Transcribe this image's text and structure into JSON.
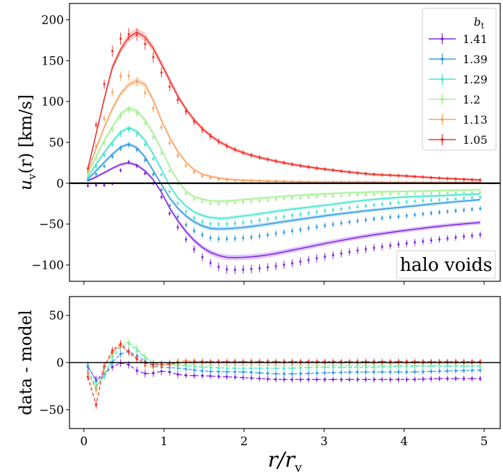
{
  "chart_data": [
    {
      "type": "line",
      "panel": "top",
      "ylabel_main": "u",
      "ylabel_sub": "v",
      "ylabel_rest": "(r) [km/s]",
      "xlim": [
        -0.18,
        5.2
      ],
      "ylim": [
        -120,
        220
      ],
      "yticks": [
        -100,
        -50,
        0,
        50,
        100,
        150,
        200
      ],
      "yticklabels": [
        "−100",
        "−50",
        "0",
        "50",
        "100",
        "150",
        "200"
      ],
      "xticks": [
        0,
        1,
        2,
        3,
        4,
        5
      ],
      "annotation": "halo voids",
      "legend": {
        "title_main": "b",
        "title_sub": "t",
        "placement": "top-right",
        "entries": [
          "1.41",
          "1.39",
          "1.29",
          "1.2",
          "1.13",
          "1.05"
        ]
      },
      "series": [
        {
          "name": "1.41",
          "color": "#8022e8",
          "anchors_x": [
            0.05,
            0.2,
            0.35,
            0.55,
            0.7,
            0.9,
            1.1,
            1.3,
            1.5,
            1.7,
            1.85,
            2.2,
            2.6,
            3.0,
            3.5,
            4.0,
            4.5,
            4.95
          ],
          "anchors_y": [
            3,
            10,
            18,
            25,
            20,
            0,
            -35,
            -62,
            -80,
            -89,
            -91,
            -89,
            -82,
            -74,
            -65,
            -58,
            -52,
            -48
          ],
          "data_y": [
            -3,
            -2,
            -1,
            26,
            18,
            -5,
            -42,
            -72,
            -92,
            -103,
            -106,
            -104,
            -98,
            -90,
            -81,
            -74,
            -68,
            -63
          ]
        },
        {
          "name": "1.39",
          "color": "#2f9ae6",
          "anchors_x": [
            0.05,
            0.2,
            0.35,
            0.55,
            0.7,
            0.9,
            1.1,
            1.3,
            1.5,
            1.65,
            2.0,
            2.5,
            3.0,
            3.5,
            4.0,
            4.5,
            4.95
          ],
          "anchors_y": [
            5,
            20,
            35,
            48,
            40,
            10,
            -22,
            -42,
            -53,
            -56,
            -54,
            -47,
            -40,
            -34,
            -29,
            -24,
            -20
          ],
          "data_y": [
            4,
            15,
            32,
            47,
            37,
            5,
            -32,
            -53,
            -64,
            -68,
            -67,
            -60,
            -52,
            -45,
            -40,
            -35,
            -31
          ]
        },
        {
          "name": "1.29",
          "color": "#3ee7cb",
          "anchors_x": [
            0.05,
            0.2,
            0.35,
            0.55,
            0.7,
            0.9,
            1.1,
            1.3,
            1.5,
            1.7,
            2.0,
            2.5,
            3.0,
            3.5,
            4.0,
            4.5,
            4.95
          ],
          "anchors_y": [
            8,
            30,
            50,
            68,
            60,
            30,
            -8,
            -30,
            -40,
            -43,
            -40,
            -33,
            -27,
            -21,
            -17,
            -15,
            -13
          ],
          "data_y": [
            7,
            27,
            47,
            66,
            56,
            24,
            -15,
            -37,
            -48,
            -50,
            -48,
            -41,
            -34,
            -28,
            -23,
            -20,
            -17
          ]
        },
        {
          "name": "1.2",
          "color": "#a4f08e",
          "anchors_x": [
            0.05,
            0.2,
            0.35,
            0.55,
            0.7,
            0.9,
            1.1,
            1.3,
            1.5,
            1.7,
            2.0,
            2.5,
            3.0,
            3.5,
            4.0,
            4.5,
            4.95
          ],
          "anchors_y": [
            12,
            42,
            68,
            92,
            85,
            55,
            15,
            -12,
            -20,
            -22,
            -20,
            -16,
            -13,
            -11,
            -10,
            -9,
            -8
          ],
          "data_y": [
            11,
            40,
            65,
            90,
            82,
            50,
            10,
            -15,
            -23,
            -25,
            -23,
            -19,
            -16,
            -14,
            -13,
            -12,
            -11
          ]
        },
        {
          "name": "1.13",
          "color": "#fca05c",
          "anchors_x": [
            0.05,
            0.2,
            0.35,
            0.5,
            0.7,
            0.85,
            1.0,
            1.2,
            1.4,
            1.6,
            1.8,
            2.2,
            2.6,
            3.0,
            3.5,
            4.0,
            4.5,
            4.95
          ],
          "anchors_y": [
            15,
            55,
            90,
            115,
            126,
            105,
            70,
            35,
            15,
            8,
            5,
            3,
            2,
            1.5,
            1.5,
            1,
            1,
            1
          ],
          "data_y": [
            14,
            60,
            110,
            133,
            120,
            95,
            62,
            30,
            12,
            6,
            4,
            3,
            2,
            1.5,
            1.5,
            1,
            1,
            1
          ]
        },
        {
          "name": "1.05",
          "color": "#f22f2a",
          "anchors_x": [
            0.05,
            0.2,
            0.35,
            0.5,
            0.65,
            0.8,
            1.0,
            1.2,
            1.4,
            1.6,
            1.8,
            2.0,
            2.4,
            2.8,
            3.2,
            3.6,
            4.0,
            4.5,
            4.95
          ],
          "anchors_y": [
            18,
            80,
            140,
            170,
            185,
            175,
            140,
            102,
            75,
            57,
            45,
            37,
            27,
            20,
            15,
            11,
            9,
            6,
            4
          ],
          "data_y": [
            18,
            95,
            160,
            180,
            182,
            165,
            130,
            98,
            73,
            56,
            45,
            37,
            27,
            20,
            15,
            11,
            9,
            6,
            4
          ]
        }
      ]
    },
    {
      "type": "line",
      "panel": "bottom",
      "ylabel": "data - model",
      "xlabel_main": "r/r",
      "xlabel_sub": "v",
      "xlim": [
        -0.18,
        5.2
      ],
      "ylim": [
        -70,
        70
      ],
      "yticks": [
        -50,
        0,
        50
      ],
      "yticklabels": [
        "−50",
        "0",
        "50"
      ],
      "xticks": [
        0,
        1,
        2,
        3,
        4,
        5
      ],
      "xticklabels": [
        "0",
        "1",
        "2",
        "3",
        "4",
        "5"
      ],
      "series": [
        {
          "name": "1.41",
          "color": "#8022e8",
          "anchors_x": [
            0.05,
            0.15,
            0.25,
            0.35,
            0.5,
            0.65,
            0.8,
            1.0,
            1.2,
            1.5,
            2.0,
            2.5,
            3.0,
            3.5,
            4.0,
            4.5,
            4.95
          ],
          "anchors_y": [
            -5,
            -18,
            -12,
            -5,
            0,
            -8,
            -12,
            -9,
            -13,
            -14,
            -16,
            -18,
            -18,
            -18,
            -18,
            -17,
            -17
          ]
        },
        {
          "name": "1.39",
          "color": "#2f9ae6",
          "anchors_x": [
            0.05,
            0.15,
            0.25,
            0.35,
            0.55,
            0.7,
            0.85,
            1.0,
            1.2,
            1.5,
            2.0,
            2.5,
            3.0,
            3.5,
            4.0,
            4.5,
            4.95
          ],
          "anchors_y": [
            -3,
            -20,
            -15,
            0,
            12,
            5,
            -3,
            -5,
            -6,
            -9,
            -10,
            -12,
            -11,
            -10,
            -10,
            -9,
            -8
          ]
        },
        {
          "name": "1.29",
          "color": "#3ee7cb",
          "anchors_x": [
            0.05,
            0.15,
            0.25,
            0.35,
            0.55,
            0.7,
            0.85,
            1.0,
            1.2,
            1.5,
            2.0,
            2.5,
            3.0,
            3.5,
            4.0,
            4.5,
            4.95
          ],
          "anchors_y": [
            -8,
            -25,
            -15,
            5,
            20,
            10,
            0,
            -2,
            -3,
            -5,
            -6,
            -6,
            -5,
            -5,
            -4,
            -4,
            -4
          ]
        },
        {
          "name": "1.2",
          "color": "#a4f08e",
          "anchors_x": [
            0.05,
            0.15,
            0.25,
            0.35,
            0.55,
            0.7,
            0.85,
            1.0,
            1.2,
            1.5,
            2.0,
            2.5,
            3.0,
            3.5,
            4.0,
            4.5,
            4.95
          ],
          "anchors_y": [
            -10,
            -30,
            -10,
            8,
            22,
            12,
            0,
            -2,
            -2,
            -3,
            -3,
            -3,
            -3,
            -3,
            -3,
            -3,
            -3
          ]
        },
        {
          "name": "1.13",
          "color": "#fca05c",
          "anchors_x": [
            0.05,
            0.15,
            0.25,
            0.35,
            0.45,
            0.6,
            0.75,
            0.9,
            1.1,
            1.3,
            1.5,
            2.0,
            2.5,
            3.0,
            3.5,
            4.0,
            4.5,
            4.95
          ],
          "anchors_y": [
            -10,
            -28,
            -5,
            10,
            18,
            8,
            -3,
            -5,
            0,
            2,
            1,
            1,
            0,
            0,
            0,
            0,
            0,
            0
          ]
        },
        {
          "name": "1.05",
          "color": "#f22f2a",
          "anchors_x": [
            0.05,
            0.15,
            0.25,
            0.35,
            0.45,
            0.55,
            0.7,
            0.85,
            1.0,
            1.2,
            1.5,
            2.0,
            2.5,
            3.0,
            3.5,
            4.0,
            4.5,
            4.95
          ],
          "anchors_y": [
            -15,
            -45,
            -5,
            12,
            20,
            12,
            2,
            -2,
            -2,
            0,
            1,
            1,
            1,
            1,
            1,
            1,
            1,
            1
          ]
        }
      ]
    }
  ]
}
